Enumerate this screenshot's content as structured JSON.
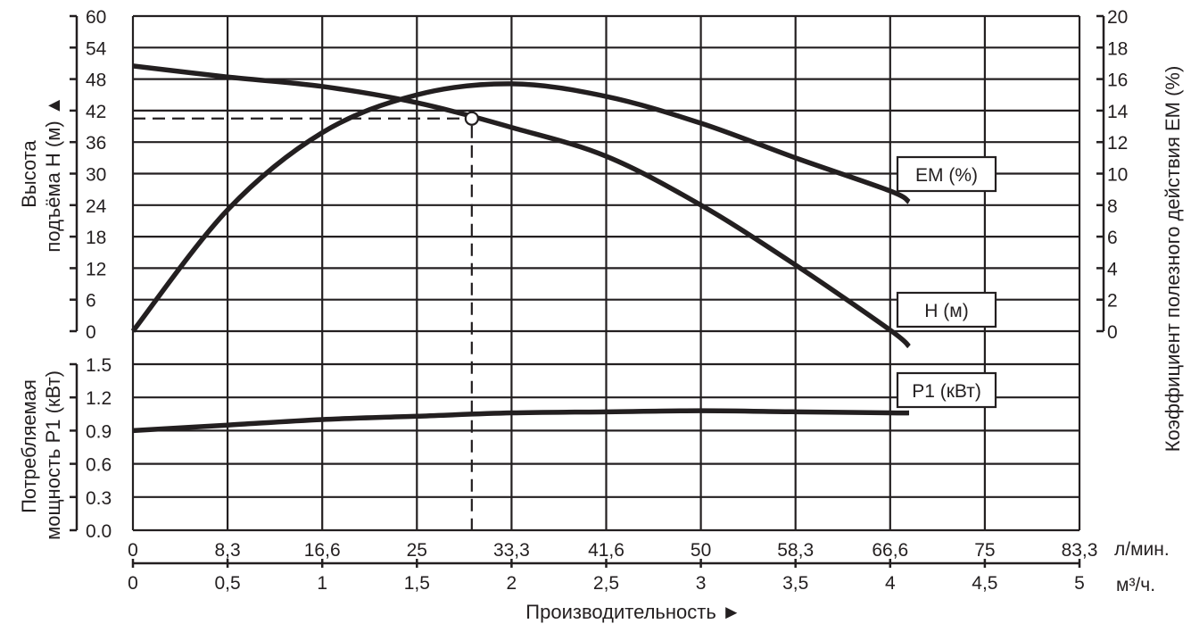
{
  "chart_data": {
    "type": "line",
    "title": "",
    "xlabel": "Производительность ►",
    "x_axes": [
      {
        "unit": "л/мин.",
        "ticks": [
          "0",
          "8,3",
          "16,6",
          "25",
          "33,3",
          "41,6",
          "50",
          "58,3",
          "66,6",
          "75",
          "83,3"
        ]
      },
      {
        "unit": "м³/ч.",
        "ticks": [
          "0",
          "0,5",
          "1",
          "1,5",
          "2",
          "2,5",
          "3",
          "3,5",
          "4",
          "4,5",
          "5"
        ]
      }
    ],
    "xlim": [
      0,
      5
    ],
    "y_axes": [
      {
        "id": "H",
        "label_line1": "Высота",
        "label_line2": "подъёма H (м) ▲",
        "ticks": [
          "60",
          "54",
          "48",
          "42",
          "36",
          "30",
          "24",
          "18",
          "12",
          "6",
          "0"
        ],
        "ylim": [
          0,
          60
        ],
        "side": "left"
      },
      {
        "id": "P1",
        "label_line1": "Потребляемая",
        "label_line2": "мощность P1 (кВт)",
        "ticks": [
          "1.5",
          "1.2",
          "0.9",
          "0.6",
          "0.3",
          "0.0"
        ],
        "ylim": [
          0,
          1.5
        ],
        "side": "left"
      },
      {
        "id": "EM",
        "label": "Коэффициент полезного действия ЕМ (%)",
        "ticks": [
          "20",
          "18",
          "16",
          "14",
          "12",
          "10",
          "8",
          "6",
          "4",
          "2",
          "0"
        ],
        "ylim": [
          0,
          20
        ],
        "side": "right"
      }
    ],
    "x": [
      0,
      0.5,
      1.0,
      1.5,
      2.0,
      2.5,
      3.0,
      3.5,
      4.0,
      4.1
    ],
    "series": [
      {
        "name": "H (м)",
        "axis": "H",
        "values": [
          50.5,
          48.4,
          46.6,
          43.5,
          38.8,
          33.3,
          24.0,
          12.6,
          0.2,
          -2.9
        ]
      },
      {
        "name": "ЕМ (%)",
        "axis": "EM",
        "values": [
          0,
          7.7,
          12.6,
          15.0,
          15.7,
          14.9,
          13.2,
          11.0,
          8.9,
          8.2
        ]
      },
      {
        "name": "P1 (кВт)",
        "axis": "P1",
        "values": [
          0.9,
          0.95,
          1.0,
          1.03,
          1.06,
          1.07,
          1.08,
          1.07,
          1.06,
          1.06
        ]
      }
    ],
    "operating_point": {
      "x": 1.79,
      "H": 40.5
    },
    "grid": true,
    "legend": "inline labels at right end of curves"
  },
  "labels": {
    "em": "ЕМ (%)",
    "h": "H (м)",
    "p1": "P1 (кВт)",
    "x_title": "Производительность ►",
    "unit_lmin": "л/мин.",
    "unit_m3h": "м³/ч.",
    "h_axis_1": "Высота",
    "h_axis_2": "подъёма H (м) ▲",
    "p_axis_1": "Потребляемая",
    "p_axis_2": "мощность P1 (кВт)",
    "em_axis": "Коэффициент полезного действия ЕМ (%)"
  },
  "colors": {
    "ink": "#231f20",
    "background": "#ffffff"
  }
}
